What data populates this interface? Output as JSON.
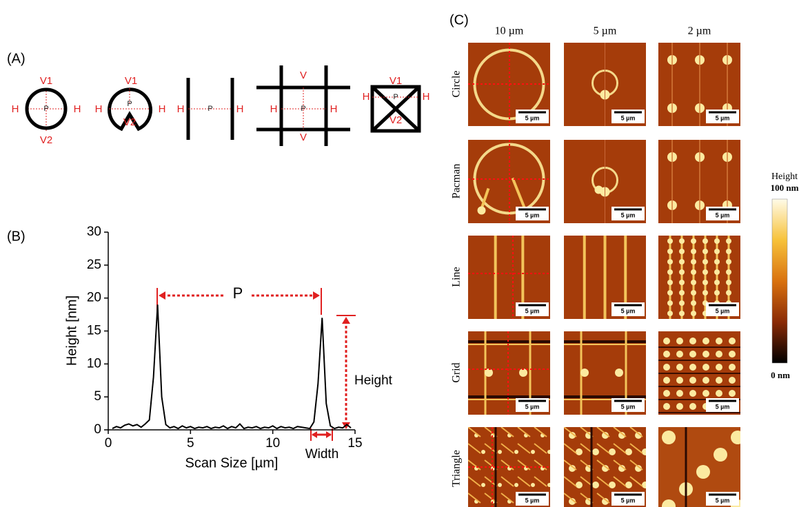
{
  "panel_a": {
    "label": "(A)",
    "shapes": [
      [
        "V1",
        "H",
        "P",
        "H",
        "V2"
      ],
      [
        "V1",
        "H",
        "P",
        "H",
        "V2"
      ],
      [
        "H",
        "P",
        "H"
      ],
      [
        "V",
        "H",
        "P",
        "H",
        "V"
      ],
      [
        "V1",
        "H",
        "P",
        "H",
        "V2"
      ]
    ]
  },
  "chart_data": {
    "type": "line",
    "panel_label": "(B)",
    "x_label": "Scan Size [µm]",
    "y_label": "Height [nm]",
    "annotations": {
      "period": "P",
      "height": "Height",
      "width": "Width"
    },
    "color": "#000000",
    "x": [
      0.25,
      0.5,
      0.75,
      1.0,
      1.25,
      1.5,
      1.75,
      2.0,
      2.25,
      2.5,
      2.75,
      3.0,
      3.25,
      3.5,
      3.75,
      4.0,
      4.25,
      4.5,
      4.75,
      5.0,
      5.25,
      5.5,
      5.75,
      6.0,
      6.25,
      6.5,
      6.75,
      7.0,
      7.25,
      7.5,
      7.75,
      8.0,
      8.25,
      8.5,
      8.75,
      9.0,
      9.25,
      9.5,
      9.75,
      10.0,
      10.25,
      10.5,
      10.75,
      11.0,
      11.25,
      11.5,
      11.75,
      12.0,
      12.25,
      12.5,
      12.75,
      13.0,
      13.25,
      13.5,
      13.75,
      14.0,
      14.25,
      14.5,
      14.75
    ],
    "values": [
      0.2,
      0.5,
      0.3,
      0.7,
      0.9,
      0.6,
      0.8,
      0.4,
      0.9,
      1.5,
      8,
      19,
      5,
      0.8,
      0.3,
      0.5,
      0.2,
      0.6,
      0.3,
      0.5,
      0.2,
      0.4,
      0.3,
      0.5,
      0.2,
      0.4,
      0.3,
      0.6,
      0.2,
      0.5,
      0.3,
      0.9,
      0.2,
      0.4,
      0.3,
      0.5,
      0.2,
      0.4,
      0.3,
      0.6,
      0.2,
      0.5,
      0.3,
      0.4,
      0.2,
      0.5,
      0.4,
      0.3,
      0.2,
      1.2,
      7,
      17,
      4,
      0.6,
      0.2,
      0.4,
      0.3,
      0.8,
      0.3
    ],
    "xlim": [
      0,
      15
    ],
    "xticks": [
      0,
      5,
      10,
      15
    ],
    "ylim": [
      0,
      30
    ],
    "yticks": [
      0,
      5,
      10,
      15,
      20,
      25,
      30
    ]
  },
  "panel_c": {
    "label": "(C)",
    "columns": [
      "10 µm",
      "5 µm",
      "2 µm"
    ],
    "rows": [
      "Circle",
      "Pacman",
      "Line",
      "Grid",
      "Triangle"
    ],
    "scale_bar": "5 µm",
    "colorbar": {
      "title": "Height",
      "max": "100 nm",
      "min": "0 nm"
    }
  }
}
